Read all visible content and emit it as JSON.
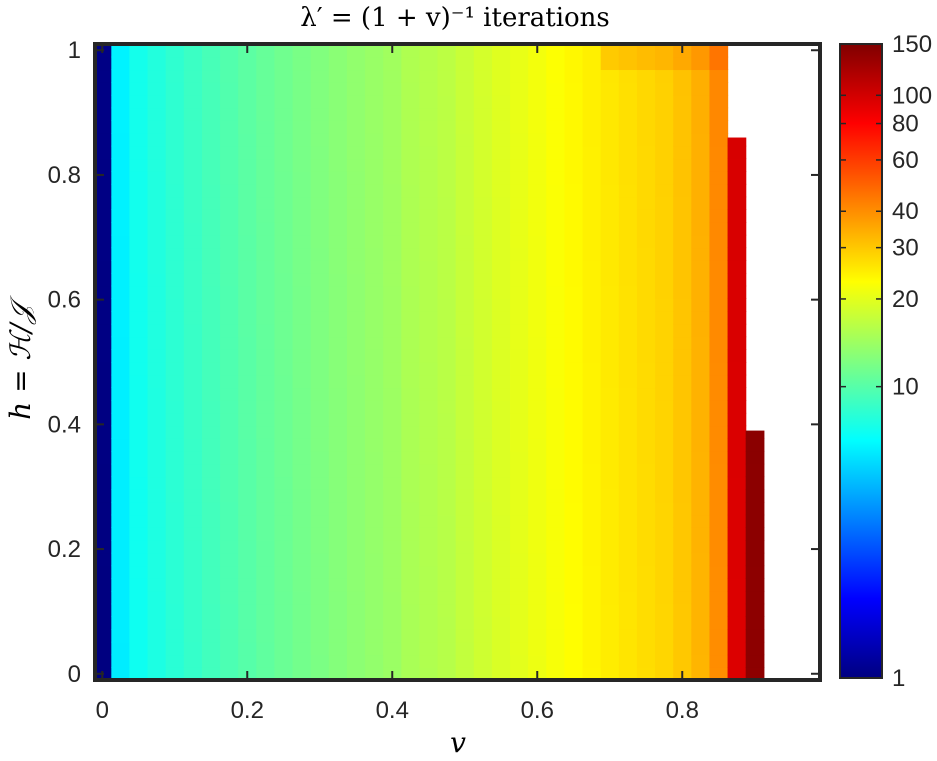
{
  "chart_data": {
    "type": "heatmap",
    "title": "λ′ = (1 + v)⁻¹ iterations",
    "xlabel": "v",
    "ylabel": "h = ℋ/𝒥",
    "xlim": [
      -0.01,
      0.99
    ],
    "ylim": [
      -0.01,
      1.01
    ],
    "x_ticks": [
      "0",
      "0.2",
      "0.4",
      "0.6",
      "0.8"
    ],
    "x_tick_values": [
      0,
      0.2,
      0.4,
      0.6,
      0.8
    ],
    "y_ticks": [
      "0",
      "0.2",
      "0.4",
      "0.6",
      "0.8",
      "1"
    ],
    "y_tick_values": [
      0,
      0.2,
      0.4,
      0.6,
      0.8,
      1
    ],
    "colorbar": {
      "scale": "log",
      "range": [
        1,
        150
      ],
      "colormap": "jet",
      "ticks": [
        "1",
        "10",
        "20",
        "30",
        "40",
        "60",
        "80",
        "100",
        "150"
      ],
      "tick_values": [
        1,
        10,
        20,
        30,
        40,
        60,
        80,
        100,
        150
      ]
    },
    "grid": false,
    "cell_width_v": 0.025,
    "v_columns": [
      0,
      0.025,
      0.05,
      0.075,
      0.1,
      0.125,
      0.15,
      0.175,
      0.2,
      0.225,
      0.25,
      0.275,
      0.3,
      0.325,
      0.35,
      0.375,
      0.4,
      0.425,
      0.45,
      0.475,
      0.5,
      0.525,
      0.55,
      0.575,
      0.6,
      0.625,
      0.65,
      0.675,
      0.7,
      0.725,
      0.75,
      0.775,
      0.8,
      0.825,
      0.85,
      0.875,
      0.9
    ],
    "iterations_by_v": [
      1,
      6,
      7,
      7.5,
      8,
      8.5,
      9,
      9.5,
      10,
      10.5,
      11,
      11.5,
      12,
      12.5,
      13,
      13.5,
      14,
      15,
      15.5,
      16,
      17,
      18,
      19,
      20,
      21,
      22,
      23,
      24,
      25,
      26,
      27,
      28,
      30,
      33,
      40,
      95,
      140
    ],
    "h_max_by_v": [
      1.01,
      1.01,
      1.01,
      1.01,
      1.01,
      1.01,
      1.01,
      1.01,
      1.01,
      1.01,
      1.01,
      1.01,
      1.01,
      1.01,
      1.01,
      1.01,
      1.01,
      1.01,
      1.01,
      1.01,
      1.01,
      1.01,
      1.01,
      1.01,
      1.01,
      1.01,
      1.01,
      1.01,
      1.01,
      1.01,
      1.01,
      1.01,
      1.01,
      1.01,
      1.01,
      0.86,
      0.39
    ],
    "top_edge_increment": {
      "h_from": 0.96,
      "v_from": 0.7,
      "extra_iterations": 4
    }
  }
}
